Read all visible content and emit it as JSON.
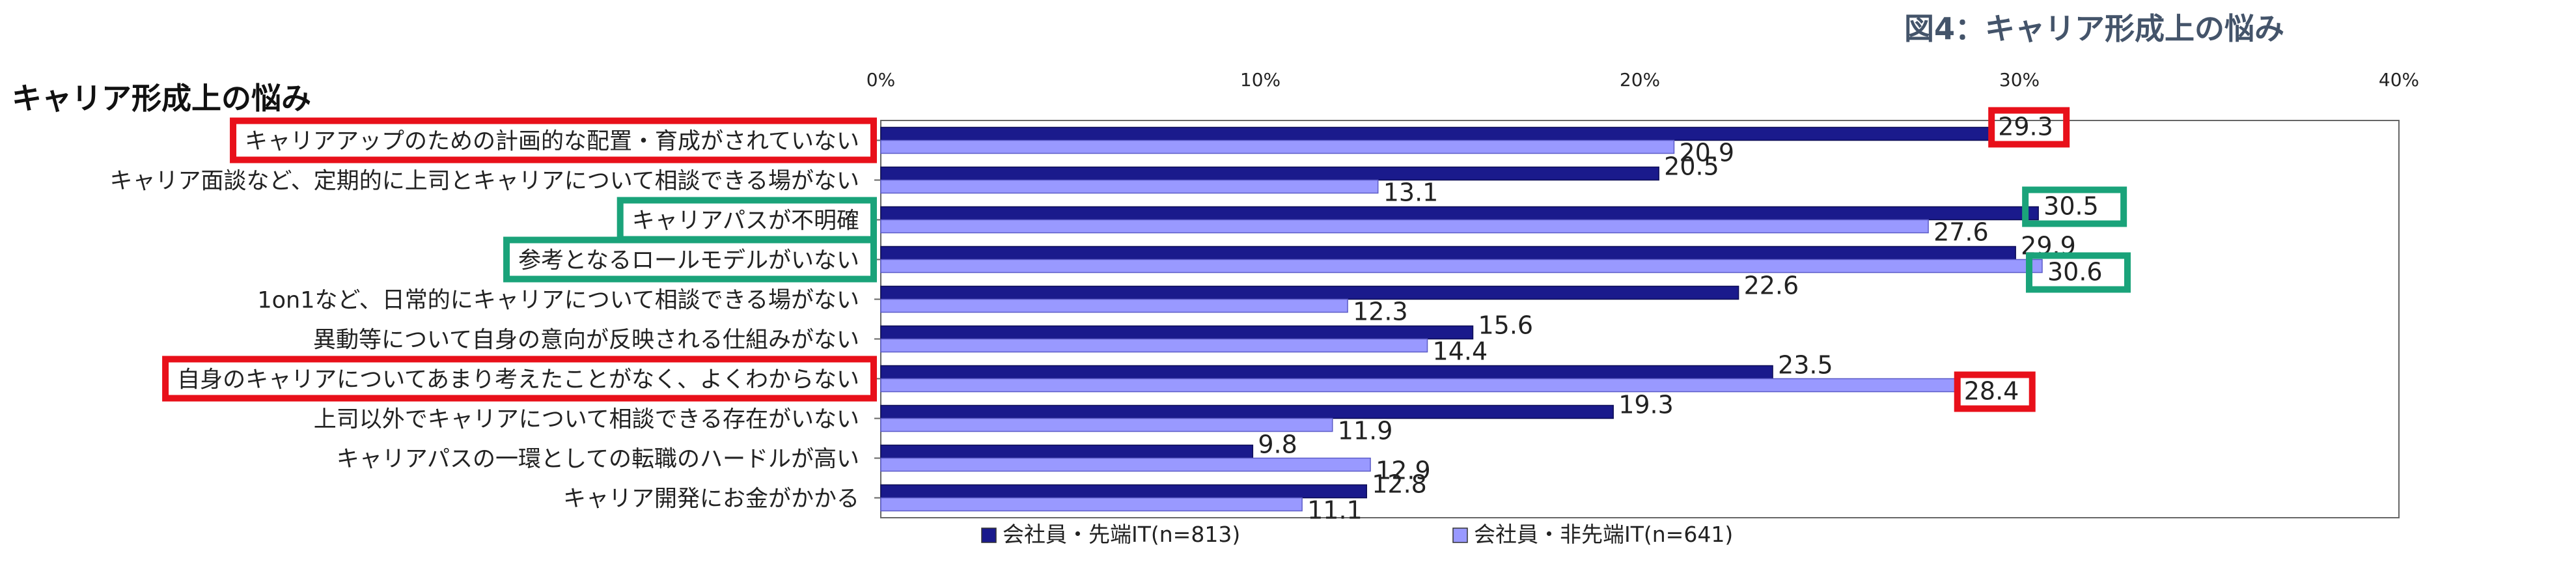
{
  "figure_label": "図4：キャリア形成上の悩み",
  "colors": {
    "series1": "#1a1a8c",
    "series2": "#9999ff",
    "highlight_red": "#e8101a",
    "highlight_green": "#1aa37a"
  },
  "chart_data": {
    "type": "bar",
    "orientation": "horizontal",
    "title": "キャリア形成上の悩み",
    "xlabel": "",
    "ylabel": "",
    "xlim": [
      0,
      40
    ],
    "x_ticks": [
      "0%",
      "10%",
      "20%",
      "30%",
      "40%"
    ],
    "grid": false,
    "legend_position": "bottom",
    "categories": [
      "キャリアアップのための計画的な配置・育成がされていない",
      "キャリア面談など、定期的に上司とキャリアについて相談できる場がない",
      "キャリアパスが不明確",
      "参考となるロールモデルがいない",
      "1on1など、日常的にキャリアについて相談できる場がない",
      "異動等について自身の意向が反映される仕組みがない",
      "自身のキャリアについてあまり考えたことがなく、よくわからない",
      "上司以外でキャリアについて相談できる存在がいない",
      "キャリアパスの一環としての転職のハードルが高い",
      "キャリア開発にお金がかかる"
    ],
    "series": [
      {
        "name": "会社員・先端IT(n=813)",
        "values": [
          29.3,
          20.5,
          30.5,
          29.9,
          22.6,
          15.6,
          23.5,
          19.3,
          9.8,
          12.8
        ]
      },
      {
        "name": "会社員・非先端IT(n=641)",
        "values": [
          20.9,
          13.1,
          27.6,
          30.6,
          12.3,
          14.4,
          28.4,
          11.9,
          12.9,
          11.1
        ]
      }
    ],
    "value_labels": [
      [
        "29.3",
        "20.5",
        "30.5",
        "29.9",
        "22.6",
        "15.6",
        "23.5",
        "19.3",
        "9.8",
        "12.8"
      ],
      [
        "20.9",
        "13.1",
        "27.6",
        "30.6",
        "12.3",
        "14.4",
        "28.4",
        "11.9",
        "12.9",
        "11.1"
      ]
    ],
    "highlights": {
      "red_categories": [
        0,
        6
      ],
      "green_categories": [
        2,
        3
      ],
      "red_values": [
        [
          0,
          0
        ],
        [
          1,
          6
        ]
      ],
      "green_values": [
        [
          0,
          2
        ],
        [
          1,
          3
        ]
      ]
    }
  }
}
